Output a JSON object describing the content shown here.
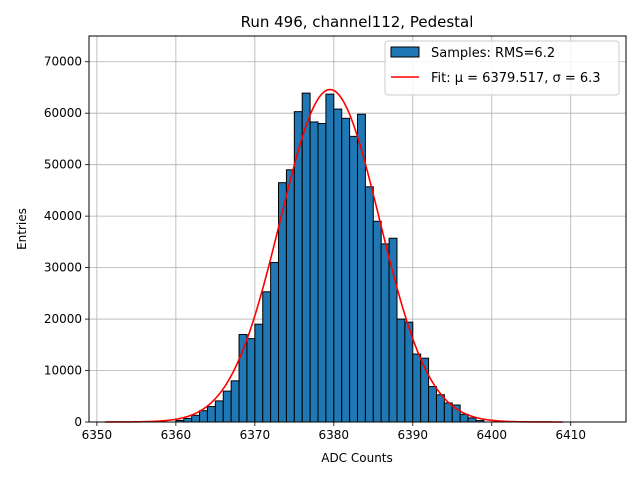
{
  "chart_data": {
    "type": "bar",
    "title": "Run 496, channel112, Pedestal",
    "xlabel": "ADC Counts",
    "ylabel": "Entries",
    "xlim": [
      6349.0,
      6417.0
    ],
    "ylim": [
      0,
      75000
    ],
    "grid": true,
    "legend_position": "top-right",
    "x_ticks": [
      6350,
      6360,
      6370,
      6380,
      6390,
      6400,
      6410
    ],
    "y_ticks": [
      0,
      10000,
      20000,
      30000,
      40000,
      50000,
      60000,
      70000
    ],
    "series": [
      {
        "name": "Samples: RMS=6.2",
        "kind": "histogram",
        "color": "#1f77b4",
        "edge_color": "#000000",
        "bin_start": 6360,
        "bin_width": 1,
        "values": [
          300,
          700,
          1300,
          2200,
          3000,
          4100,
          6000,
          8000,
          17000,
          16200,
          19000,
          25300,
          31000,
          46500,
          49000,
          60300,
          63900,
          58300,
          58000,
          63700,
          60800,
          59000,
          55500,
          59800,
          45700,
          39000,
          34600,
          35700,
          20000,
          19400,
          13200,
          12400,
          6900,
          5300,
          3700,
          3300,
          1500,
          800,
          300
        ]
      },
      {
        "name": "Fit: μ = 6379.517, σ = 6.3",
        "kind": "line",
        "color": "#ff0000",
        "mu": 6379.517,
        "sigma": 6.3,
        "amplitude": 64600,
        "x_range": [
          6351,
          6409
        ]
      }
    ]
  }
}
